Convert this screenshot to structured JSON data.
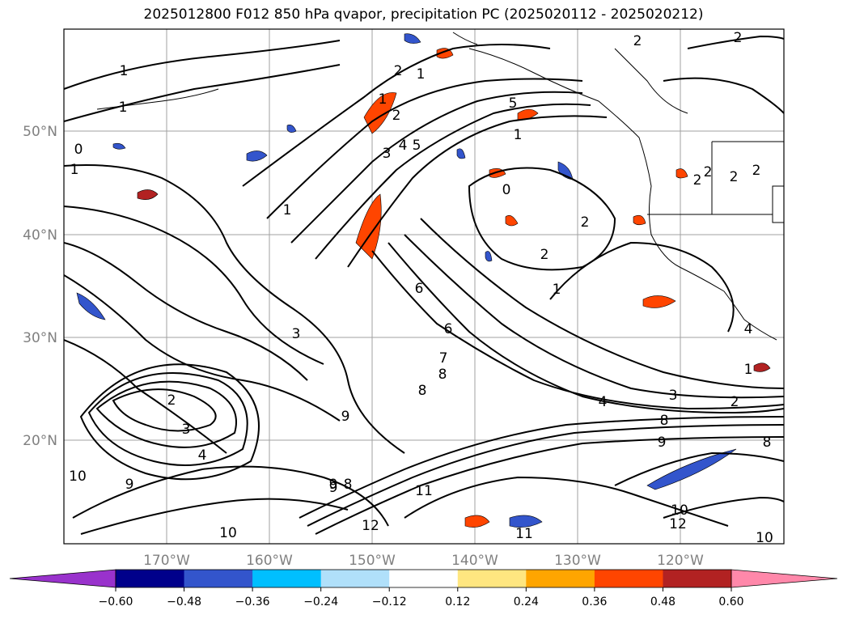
{
  "title": "2025012800 F012 850 hPa qvapor, precipitation PC (2025020112 - 2025020212)",
  "map": {
    "lon_labels": [
      "170°W",
      "160°W",
      "150°W",
      "140°W",
      "130°W",
      "120°W"
    ],
    "lat_labels": [
      "50°N",
      "40°N",
      "30°N",
      "20°N"
    ],
    "contour_labels": [
      "1",
      "1",
      "0",
      "1",
      "1",
      "2",
      "1",
      "1",
      "2",
      "3",
      "4",
      "5",
      "5",
      "1",
      "0",
      "2",
      "2",
      "2",
      "2",
      "2",
      "2",
      "2",
      "1",
      "3",
      "6",
      "6",
      "7",
      "8",
      "8",
      "9",
      "9",
      "4",
      "3",
      "2",
      "8",
      "9",
      "8",
      "2",
      "3",
      "4",
      "10",
      "9",
      "11",
      "12",
      "10",
      "11",
      "10",
      "12",
      "10",
      "9",
      "8",
      "1",
      "4",
      "2"
    ]
  },
  "colorbar": {
    "ticks": [
      "−0.60",
      "−0.48",
      "−0.36",
      "−0.24",
      "−0.12",
      "0.12",
      "0.24",
      "0.36",
      "0.48",
      "0.60"
    ],
    "under_color": "#9932cc",
    "over_color": "#ff88aa",
    "colors": [
      "#00008b",
      "#3355cc",
      "#00bfff",
      "#b0e0fa",
      "#ffffff",
      "#ffe680",
      "#ffa500",
      "#ff4500",
      "#b22222"
    ]
  }
}
